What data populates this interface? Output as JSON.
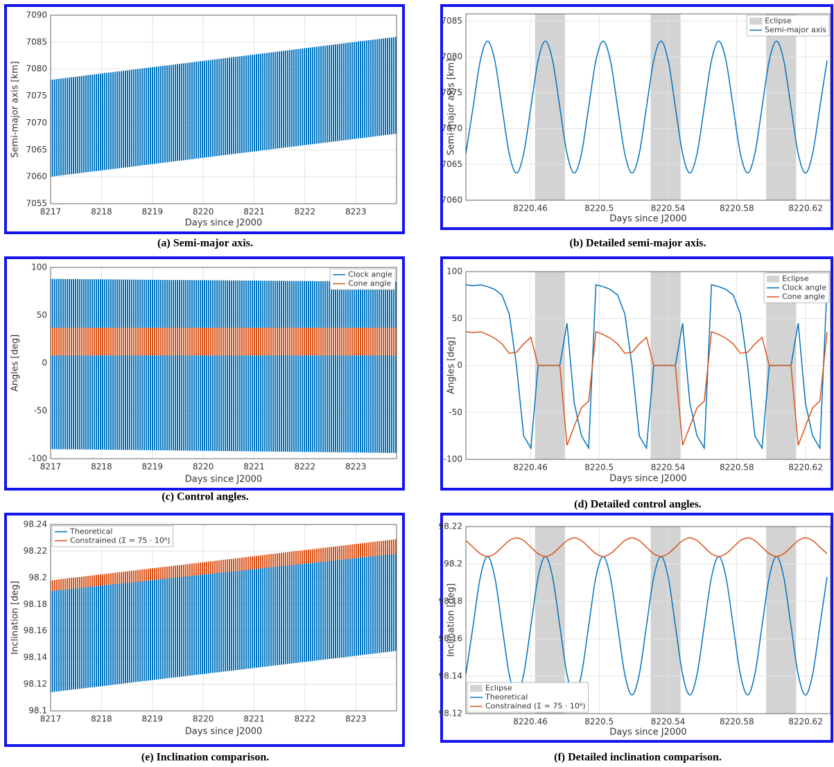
{
  "chart_data": [
    {
      "type": "band",
      "caption": "(a) Semi-major axis.",
      "xlabel": "Days since J2000",
      "ylabel": "Semi-major axis [km]",
      "xlim": [
        8217,
        8223.8
      ],
      "xticks": [
        8217,
        8218,
        8219,
        8220,
        8221,
        8222,
        8223
      ],
      "ylim": [
        7055,
        7090
      ],
      "yticks": [
        7055,
        7060,
        7065,
        7070,
        7075,
        7080,
        7085,
        7090
      ],
      "grid": true,
      "x": [
        8217,
        8223.8
      ],
      "series": [
        {
          "color": "#0072bd",
          "low": [
            7060,
            7068
          ],
          "high": [
            7078,
            7086
          ]
        }
      ]
    },
    {
      "type": "line",
      "smooth": true,
      "caption": "(b) Detailed semi-major axis.",
      "xlabel": "Days since J2000",
      "ylabel": "Semi-major axis [km]",
      "xlim": [
        8220.4225,
        8220.6345
      ],
      "xticks": [
        8220.46,
        8220.5,
        8220.54,
        8220.58,
        8220.62
      ],
      "ylim": [
        7060,
        7086
      ],
      "yticks": [
        7060,
        7065,
        7070,
        7075,
        7080,
        7085
      ],
      "grid": true,
      "legend": "upper right",
      "shading": {
        "name": "Eclipse",
        "color": "#d3d3d3",
        "intervals": [
          [
            8220.4627,
            8220.4801
          ],
          [
            8220.5299,
            8220.5473
          ],
          [
            8220.5971,
            8220.6145
          ]
        ]
      },
      "x": [
        8220.4225,
        8220.4267,
        8220.4309,
        8220.4351,
        8220.4393,
        8220.4435,
        8220.4477,
        8220.4519,
        8220.4561,
        8220.4603,
        8220.4645,
        8220.4687,
        8220.4729,
        8220.4771,
        8220.4813,
        8220.4855,
        8220.4897,
        8220.4939,
        8220.4981,
        8220.5023,
        8220.5065,
        8220.5107,
        8220.5149,
        8220.5191,
        8220.5233,
        8220.5275,
        8220.5317,
        8220.5359,
        8220.5401,
        8220.5443,
        8220.5485,
        8220.5527,
        8220.5569,
        8220.5611,
        8220.5653,
        8220.5695,
        8220.5737,
        8220.5779,
        8220.5821,
        8220.5863,
        8220.5905,
        8220.5947,
        8220.5989,
        8220.6031,
        8220.6073,
        8220.6115,
        8220.6157,
        8220.6199,
        8220.6241,
        8220.6283,
        8220.6325
      ],
      "series": [
        {
          "name": "Semi-major axis",
          "color": "#0072bd",
          "values": [
            7066.5,
            7073,
            7079.5,
            7082.2,
            7079.5,
            7073,
            7066.5,
            7063.8,
            7066.5,
            7073,
            7079.5,
            7082.2,
            7079.5,
            7073,
            7066.5,
            7063.8,
            7066.5,
            7073,
            7079.5,
            7082.2,
            7079.5,
            7073,
            7066.5,
            7063.8,
            7066.5,
            7073,
            7079.5,
            7082.2,
            7079.5,
            7073,
            7066.5,
            7063.8,
            7066.5,
            7073,
            7079.5,
            7082.2,
            7079.5,
            7073,
            7066.5,
            7063.8,
            7066.5,
            7073,
            7079.5,
            7082.2,
            7079.5,
            7073,
            7066.5,
            7063.8,
            7066.5,
            7073,
            7079.5
          ]
        }
      ]
    },
    {
      "type": "band",
      "caption": "(c) Control angles.",
      "xlabel": "Days since J2000",
      "ylabel": "Angles [deg]",
      "xlim": [
        8217,
        8223.8
      ],
      "xticks": [
        8217,
        8218,
        8219,
        8220,
        8221,
        8222,
        8223
      ],
      "ylim": [
        -100,
        100
      ],
      "yticks": [
        -100,
        -50,
        0,
        50,
        100
      ],
      "grid": true,
      "legend": "upper right",
      "x": [
        8217,
        8223.8
      ],
      "series": [
        {
          "name": "Clock angle",
          "color": "#0072bd",
          "low": [
            -90,
            -94
          ],
          "high": [
            88,
            85
          ]
        },
        {
          "name": "Cone angle",
          "color": "#d95319",
          "low": [
            8,
            8
          ],
          "high": [
            37,
            37
          ]
        }
      ]
    },
    {
      "type": "line",
      "caption": "(d) Detailed control angles.",
      "xlabel": "Days since J2000",
      "ylabel": "Angles [deg]",
      "xlim": [
        8220.4225,
        8220.6345
      ],
      "xticks": [
        8220.46,
        8220.5,
        8220.54,
        8220.58,
        8220.62
      ],
      "ylim": [
        -100,
        100
      ],
      "yticks": [
        -100,
        -50,
        0,
        50,
        100
      ],
      "grid": true,
      "legend": "upper right",
      "shading": {
        "name": "Eclipse",
        "color": "#d3d3d3",
        "intervals": [
          [
            8220.4627,
            8220.4801
          ],
          [
            8220.5299,
            8220.5473
          ],
          [
            8220.5971,
            8220.6145
          ]
        ]
      },
      "x": [
        8220.4225,
        8220.4267,
        8220.4309,
        8220.4351,
        8220.4393,
        8220.4435,
        8220.4477,
        8220.4519,
        8220.4561,
        8220.4603,
        8220.4645,
        8220.4687,
        8220.4729,
        8220.4771,
        8220.4813,
        8220.4855,
        8220.4897,
        8220.4939,
        8220.4981,
        8220.5023,
        8220.5065,
        8220.5107,
        8220.5149,
        8220.5191,
        8220.5233,
        8220.5275,
        8220.5317,
        8220.5359,
        8220.5401,
        8220.5443,
        8220.5485,
        8220.5527,
        8220.5569,
        8220.5611,
        8220.5653,
        8220.5695,
        8220.5737,
        8220.5779,
        8220.5821,
        8220.5863,
        8220.5905,
        8220.5947,
        8220.5989,
        8220.6031,
        8220.6073,
        8220.6115,
        8220.6157,
        8220.6199,
        8220.6241,
        8220.6283,
        8220.6325
      ],
      "series": [
        {
          "name": "Clock angle",
          "color": "#0072bd",
          "values": [
            86,
            85,
            86,
            84,
            81,
            75,
            55,
            0,
            -75,
            -88,
            0,
            0,
            0,
            0,
            45,
            -40,
            -75,
            -88,
            86,
            84,
            81,
            75,
            55,
            0,
            -75,
            -88,
            0,
            0,
            0,
            0,
            45,
            -40,
            -75,
            -88,
            86,
            84,
            81,
            75,
            55,
            0,
            -75,
            -88,
            0,
            0,
            0,
            0,
            45,
            -40,
            -75,
            -88,
            86
          ]
        },
        {
          "name": "Cone angle",
          "color": "#d95319",
          "values": [
            36,
            35,
            36,
            33,
            29,
            23,
            13,
            14,
            23,
            30,
            0,
            0,
            0,
            0,
            -85,
            -65,
            -45,
            -38,
            36,
            33,
            29,
            23,
            13,
            14,
            23,
            30,
            0,
            0,
            0,
            0,
            -85,
            -65,
            -45,
            -38,
            36,
            33,
            29,
            23,
            13,
            14,
            23,
            30,
            0,
            0,
            0,
            0,
            -85,
            -65,
            -45,
            -38,
            36
          ]
        }
      ]
    },
    {
      "type": "band",
      "caption": "(e) Inclination comparison.",
      "xlabel": "Days since J2000",
      "ylabel": "Inclination [deg]",
      "xlim": [
        8217,
        8223.8
      ],
      "xticks": [
        8217,
        8218,
        8219,
        8220,
        8221,
        8222,
        8223
      ],
      "ylim": [
        98.1,
        98.24
      ],
      "yticks": [
        98.1,
        98.12,
        98.14,
        98.16,
        98.18,
        98.2,
        98.22,
        98.24
      ],
      "grid": true,
      "legend": "upper left",
      "x": [
        8217,
        8223.8
      ],
      "series": [
        {
          "name": "Theoretical",
          "color": "#0072bd",
          "low": [
            98.114,
            98.145
          ],
          "high": [
            98.19,
            98.22
          ]
        },
        {
          "name": "Constrained (Σ = 75 · 10⁶)",
          "color": "#d95319",
          "low": [
            98.19,
            98.218
          ],
          "high": [
            98.198,
            98.229
          ]
        }
      ]
    },
    {
      "type": "line",
      "smooth": true,
      "caption": "(f) Detailed inclination comparison.",
      "xlabel": "Days since J2000",
      "ylabel": "Inclination [deg]",
      "xlim": [
        8220.4225,
        8220.6345
      ],
      "xticks": [
        8220.46,
        8220.5,
        8220.54,
        8220.58,
        8220.62
      ],
      "ylim": [
        98.12,
        98.22
      ],
      "yticks": [
        98.12,
        98.14,
        98.16,
        98.18,
        98.2,
        98.22
      ],
      "grid": true,
      "legend": "lower left",
      "shading": {
        "name": "Eclipse",
        "color": "#d3d3d3",
        "intervals": [
          [
            8220.4627,
            8220.4801
          ],
          [
            8220.5299,
            8220.5473
          ],
          [
            8220.5971,
            8220.6145
          ]
        ]
      },
      "x": [
        8220.4225,
        8220.4267,
        8220.4309,
        8220.4351,
        8220.4393,
        8220.4435,
        8220.4477,
        8220.4519,
        8220.4561,
        8220.4603,
        8220.4645,
        8220.4687,
        8220.4729,
        8220.4771,
        8220.4813,
        8220.4855,
        8220.4897,
        8220.4939,
        8220.4981,
        8220.5023,
        8220.5065,
        8220.5107,
        8220.5149,
        8220.5191,
        8220.5233,
        8220.5275,
        8220.5317,
        8220.5359,
        8220.5401,
        8220.5443,
        8220.5485,
        8220.5527,
        8220.5569,
        8220.5611,
        8220.5653,
        8220.5695,
        8220.5737,
        8220.5779,
        8220.5821,
        8220.5863,
        8220.5905,
        8220.5947,
        8220.5989,
        8220.6031,
        8220.6073,
        8220.6115,
        8220.6157,
        8220.6199,
        8220.6241,
        8220.6283,
        8220.6325
      ],
      "series": [
        {
          "name": "Theoretical",
          "color": "#0072bd",
          "values": [
            98.141,
            98.167,
            98.193,
            98.204,
            98.193,
            98.167,
            98.141,
            98.13,
            98.141,
            98.167,
            98.193,
            98.204,
            98.193,
            98.167,
            98.141,
            98.13,
            98.141,
            98.167,
            98.193,
            98.204,
            98.193,
            98.167,
            98.141,
            98.13,
            98.141,
            98.167,
            98.193,
            98.204,
            98.193,
            98.167,
            98.141,
            98.13,
            98.141,
            98.167,
            98.193,
            98.204,
            98.193,
            98.167,
            98.141,
            98.13,
            98.141,
            98.167,
            98.193,
            98.204,
            98.193,
            98.167,
            98.141,
            98.13,
            98.141,
            98.167,
            98.193
          ]
        },
        {
          "name": "Constrained (Σ = 75 · 10⁶)",
          "color": "#d95319",
          "values": [
            98.2125,
            98.209,
            98.2055,
            98.204,
            98.2055,
            98.209,
            98.2125,
            98.214,
            98.2125,
            98.209,
            98.2055,
            98.204,
            98.2055,
            98.209,
            98.2125,
            98.214,
            98.2125,
            98.209,
            98.2055,
            98.204,
            98.2055,
            98.209,
            98.2125,
            98.214,
            98.2125,
            98.209,
            98.2055,
            98.204,
            98.2055,
            98.209,
            98.2125,
            98.214,
            98.2125,
            98.209,
            98.2055,
            98.204,
            98.2055,
            98.209,
            98.2125,
            98.214,
            98.2125,
            98.209,
            98.2055,
            98.204,
            98.2055,
            98.209,
            98.2125,
            98.214,
            98.2125,
            98.209,
            98.2055
          ]
        }
      ]
    }
  ]
}
